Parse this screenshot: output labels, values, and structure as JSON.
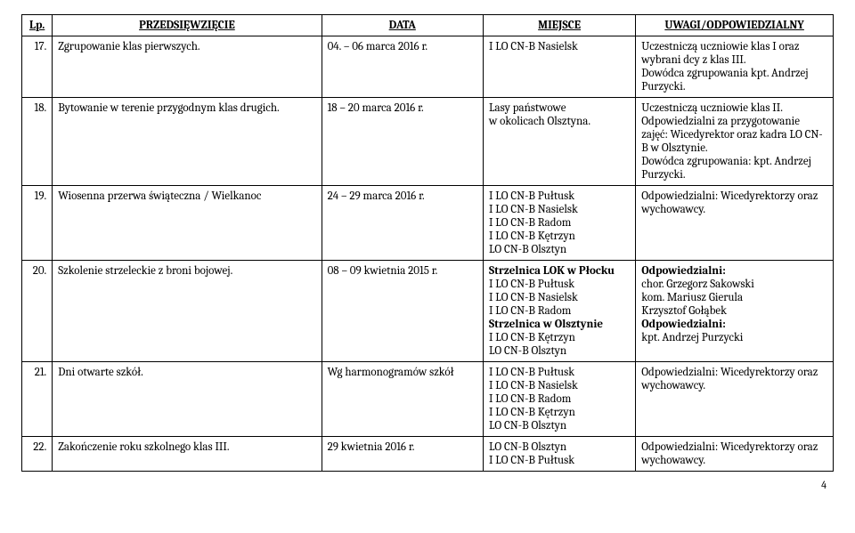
{
  "headers": {
    "lp": "Lp.",
    "przed": "PRZEDSIĘWZIĘCIE",
    "data": "DATA",
    "miejsce": "MIEJSCE",
    "uwagi": "UWAGI/ODPOWIEDZIALNY"
  },
  "rows": [
    {
      "lp": "17.",
      "przed": "Zgrupowanie klas pierwszych.",
      "data": "04. – 06 marca 2016 r.",
      "miejsce": "I LO CN-B Nasielsk",
      "uwagi": "Uczestniczą uczniowie klas I oraz wybrani dcy z klas III.\nDowódca zgrupowania kpt. Andrzej Purzycki."
    },
    {
      "lp": "18.",
      "przed": "Bytowanie w terenie przygodnym klas drugich.",
      "data": "18 – 20 marca 2016 r.",
      "miejsce": "Lasy państwowe\nw okolicach Olsztyna.",
      "uwagi": "Uczestniczą uczniowie klas II.\nOdpowiedzialni za przygotowanie zajęć: Wicedyrektor oraz kadra LO CN-B w Olsztynie.\nDowódca zgrupowania: kpt. Andrzej Purzycki."
    },
    {
      "lp": "19.",
      "przed": "Wiosenna przerwa świąteczna / Wielkanoc",
      "data": "24 – 29 marca 2016 r.",
      "miejsce": "I LO CN-B Pułtusk\nI LO CN-B Nasielsk\nI LO CN-B Radom\nI LO CN-B Kętrzyn\nLO CN-B Olsztyn",
      "uwagi": "Odpowiedzialni: Wicedyrektorzy oraz wychowawcy."
    },
    {
      "lp": "20.",
      "przed": "Szkolenie strzeleckie z broni bojowej.",
      "data": "08 – 09 kwietnia 2015 r.",
      "miejsce": "<b>Strzelnica LOK w Płocku</b>\nI LO CN-B Pułtusk\nI LO CN-B Nasielsk\nI LO CN-B Radom\n<b>Strzelnica w Olsztynie</b>\nI LO CN-B Kętrzyn\nLO CN-B Olsztyn",
      "uwagi": "<b>Odpowiedzialni:</b>\nchor. Grzegorz Sakowski\nkom. Mariusz Gierula\nKrzysztof Gołąbek\n<b>Odpowiedzialni:</b>\nkpt. Andrzej Purzycki"
    },
    {
      "lp": "21.",
      "przed": "Dni otwarte szkół.",
      "data": "Wg harmonogramów szkół",
      "miejsce": "I LO CN-B Pułtusk\nI LO CN-B Nasielsk\nI LO CN-B Radom\nI LO CN-B Kętrzyn\nLO CN-B Olsztyn",
      "uwagi": "Odpowiedzialni: Wicedyrektorzy oraz wychowawcy."
    },
    {
      "lp": "22.",
      "przed": "Zakończenie roku szkolnego klas III.",
      "data": "29 kwietnia 2016 r.",
      "miejsce": "LO CN-B Olsztyn\nI LO CN-B Pułtusk",
      "uwagi": "Odpowiedzialni: Wicedyrektorzy oraz wychowawcy."
    }
  ],
  "pageNumber": "4"
}
